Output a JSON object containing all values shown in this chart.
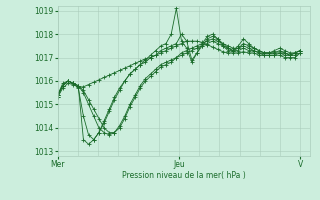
{
  "background_color": "#cceedd",
  "grid_color": "#aaccbb",
  "line_color": "#1a6b2a",
  "xlabel": "Pression niveau de la mer( hPa )",
  "ylim": [
    1012.8,
    1019.2
  ],
  "yticks": [
    1013,
    1014,
    1015,
    1016,
    1017,
    1018,
    1019
  ],
  "xlim": [
    0,
    50
  ],
  "day_labels": [
    "Mer",
    "Jeu",
    "V"
  ],
  "day_positions": [
    0,
    24,
    48
  ],
  "n_x_gridlines": 13,
  "series": [
    [
      1015.3,
      1015.7,
      1015.9,
      1015.85,
      1015.75,
      1015.75,
      1015.85,
      1015.95,
      1016.05,
      1016.15,
      1016.25,
      1016.35,
      1016.45,
      1016.55,
      1016.65,
      1016.75,
      1016.85,
      1016.95,
      1017.0,
      1017.1,
      1017.2,
      1017.3,
      1017.4,
      1017.5,
      1017.6,
      1017.7,
      1017.7,
      1017.7,
      1017.65,
      1017.55,
      1017.45,
      1017.35,
      1017.25,
      1017.2,
      1017.2,
      1017.2,
      1017.25,
      1017.2,
      1017.2,
      1017.1,
      1017.1,
      1017.1,
      1017.1,
      1017.1,
      1017.0,
      1017.0,
      1017.0,
      1017.2
    ],
    [
      1015.4,
      1015.8,
      1016.0,
      1015.9,
      1015.8,
      1013.5,
      1013.3,
      1013.5,
      1013.8,
      1014.2,
      1014.7,
      1015.2,
      1015.6,
      1016.0,
      1016.3,
      1016.5,
      1016.7,
      1016.9,
      1017.1,
      1017.3,
      1017.5,
      1017.6,
      1018.0,
      1019.1,
      1017.7,
      1017.4,
      1016.8,
      1017.2,
      1017.6,
      1017.9,
      1018.0,
      1017.8,
      1017.5,
      1017.3,
      1017.3,
      1017.5,
      1017.8,
      1017.6,
      1017.4,
      1017.3,
      1017.2,
      1017.2,
      1017.3,
      1017.4,
      1017.3,
      1017.2,
      1017.2,
      1017.3
    ],
    [
      1015.3,
      1015.8,
      1016.0,
      1015.9,
      1015.7,
      1014.5,
      1013.7,
      1013.5,
      1013.8,
      1014.3,
      1014.8,
      1015.3,
      1015.7,
      1016.0,
      1016.3,
      1016.5,
      1016.7,
      1016.8,
      1017.0,
      1017.1,
      1017.3,
      1017.4,
      1017.5,
      1017.6,
      1018.0,
      1017.7,
      1016.9,
      1017.2,
      1017.5,
      1017.8,
      1017.9,
      1017.8,
      1017.6,
      1017.4,
      1017.3,
      1017.4,
      1017.6,
      1017.5,
      1017.4,
      1017.3,
      1017.2,
      1017.2,
      1017.2,
      1017.3,
      1017.2,
      1017.1,
      1017.1,
      1017.2
    ],
    [
      1015.4,
      1015.8,
      1016.0,
      1015.9,
      1015.8,
      1015.5,
      1015.0,
      1014.5,
      1014.0,
      1013.8,
      1013.7,
      1013.8,
      1014.1,
      1014.5,
      1015.0,
      1015.4,
      1015.8,
      1016.1,
      1016.3,
      1016.5,
      1016.7,
      1016.8,
      1016.9,
      1017.0,
      1017.2,
      1017.3,
      1017.4,
      1017.5,
      1017.6,
      1017.7,
      1017.8,
      1017.7,
      1017.6,
      1017.5,
      1017.4,
      1017.4,
      1017.5,
      1017.4,
      1017.3,
      1017.2,
      1017.2,
      1017.2,
      1017.2,
      1017.2,
      1017.2,
      1017.1,
      1017.2,
      1017.3
    ],
    [
      1015.4,
      1015.9,
      1016.0,
      1015.9,
      1015.8,
      1015.6,
      1015.2,
      1014.8,
      1014.4,
      1014.0,
      1013.8,
      1013.8,
      1014.0,
      1014.4,
      1014.9,
      1015.3,
      1015.7,
      1016.0,
      1016.2,
      1016.4,
      1016.6,
      1016.7,
      1016.8,
      1017.0,
      1017.1,
      1017.2,
      1017.3,
      1017.4,
      1017.5,
      1017.6,
      1017.7,
      1017.6,
      1017.5,
      1017.4,
      1017.3,
      1017.3,
      1017.4,
      1017.3,
      1017.3,
      1017.2,
      1017.1,
      1017.1,
      1017.1,
      1017.2,
      1017.1,
      1017.1,
      1017.2,
      1017.3
    ]
  ]
}
